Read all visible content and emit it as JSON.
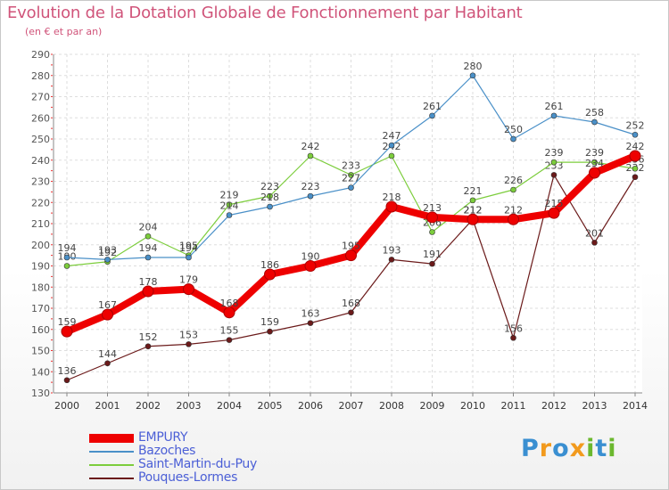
{
  "header": {
    "title": "Evolution de la Dotation Globale de Fonctionnement par Habitant",
    "subtitle": "(en € et par an)"
  },
  "logo": {
    "text": "Proxiti",
    "letters": [
      "P",
      "r",
      "o",
      "x",
      "i",
      "t",
      "i"
    ],
    "colors": [
      "#3a8fd1",
      "#f29a1d",
      "#3a8fd1",
      "#f29a1d",
      "#6bb82e",
      "#3a8fd1",
      "#6bb82e"
    ]
  },
  "chart_data": {
    "type": "line",
    "title": "Evolution de la Dotation Globale de Fonctionnement par Habitant",
    "subtitle": "(en € et par an)",
    "xlabel": "",
    "ylabel": "",
    "ylim": [
      130,
      290
    ],
    "yticks": [
      130,
      140,
      150,
      160,
      170,
      180,
      190,
      200,
      210,
      220,
      230,
      240,
      250,
      260,
      270,
      280,
      290
    ],
    "grid": true,
    "legend": "bottom-left",
    "categories": [
      "2000",
      "2001",
      "2002",
      "2003",
      "2004",
      "2005",
      "2006",
      "2007",
      "2008",
      "2009",
      "2010",
      "2011",
      "2012",
      "2013",
      "2014"
    ],
    "series": [
      {
        "name": "Pouques-Lormes",
        "color": "#6b1a1a",
        "values": [
          136,
          144,
          152,
          153,
          155,
          159,
          163,
          168,
          193,
          191,
          212,
          156,
          233,
          201,
          232
        ]
      },
      {
        "name": "Saint-Martin-du-Puy",
        "color": "#7ccd3c",
        "values": [
          190,
          192,
          204,
          195,
          219,
          223,
          242,
          233,
          242,
          206,
          221,
          226,
          239,
          239,
          236
        ]
      },
      {
        "name": "Bazoches",
        "color": "#4a90c8",
        "values": [
          194,
          193,
          194,
          194,
          214,
          218,
          223,
          227,
          247,
          261,
          280,
          250,
          261,
          258,
          252
        ]
      },
      {
        "name": "EMPURY",
        "color": "#ee0000",
        "values": [
          159,
          167,
          178,
          179,
          168,
          186,
          190,
          195,
          218,
          213,
          212,
          212,
          215,
          234,
          242
        ]
      }
    ],
    "legend_order": [
      "EMPURY",
      "Bazoches",
      "Saint-Martin-du-Puy",
      "Pouques-Lormes"
    ],
    "legend_colors": {
      "EMPURY": {
        "line": "#ee0000",
        "text": "#4b5fd6"
      },
      "Bazoches": {
        "line": "#4a90c8",
        "text": "#4b5fd6"
      },
      "Saint-Martin-du-Puy": {
        "line": "#7ccd3c",
        "text": "#4b5fd6"
      },
      "Pouques-Lormes": {
        "line": "#6b1a1a",
        "text": "#4b5fd6"
      }
    }
  }
}
